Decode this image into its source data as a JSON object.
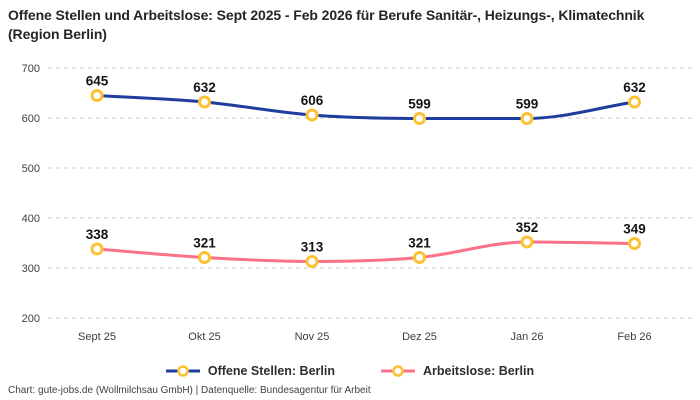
{
  "title": "Offene Stellen und Arbeitslose: Sept 2025 - Feb 2026 für Berufe Sanitär-, Heizungs-, Klimatechnik (Region Berlin)",
  "footer": {
    "attribution": "Chart: gute-jobs.de (Wollmilchsau GmbH) | Datenquelle: Bundesagentur für Arbeit"
  },
  "colors": {
    "background": "#ffffff",
    "grid": "#c9c9c9",
    "axis_text": "#3d3d3d",
    "data_label_text": "#141414",
    "marker_ring": "#fdc233",
    "marker_fill": "#ffffff",
    "series_blue": "#1f3d9e",
    "series_pink": "#f97287"
  },
  "chart_data": {
    "type": "line",
    "title": "Offene Stellen und Arbeitslose: Sept 2025 - Feb 2026 für Berufe Sanitär-, Heizungs-, Klimatechnik (Region Berlin)",
    "categories": [
      "Sept 25",
      "Okt 25",
      "Nov 25",
      "Dez 25",
      "Jan 26",
      "Feb 26"
    ],
    "series": [
      {
        "name": "Offene Stellen: Berlin",
        "color": "#1f3d9e",
        "values": [
          645,
          632,
          606,
          599,
          599,
          632
        ]
      },
      {
        "name": "Arbeitslose: Berlin",
        "color": "#f97287",
        "values": [
          338,
          321,
          313,
          321,
          352,
          349
        ]
      }
    ],
    "ylim": [
      200,
      700
    ],
    "yticks": [
      200,
      300,
      400,
      500,
      600,
      700
    ],
    "xlabel": "",
    "ylabel": "",
    "grid": "horizontal-dashed",
    "legend_position": "bottom",
    "data_labels": true,
    "marker": "open-circle"
  }
}
